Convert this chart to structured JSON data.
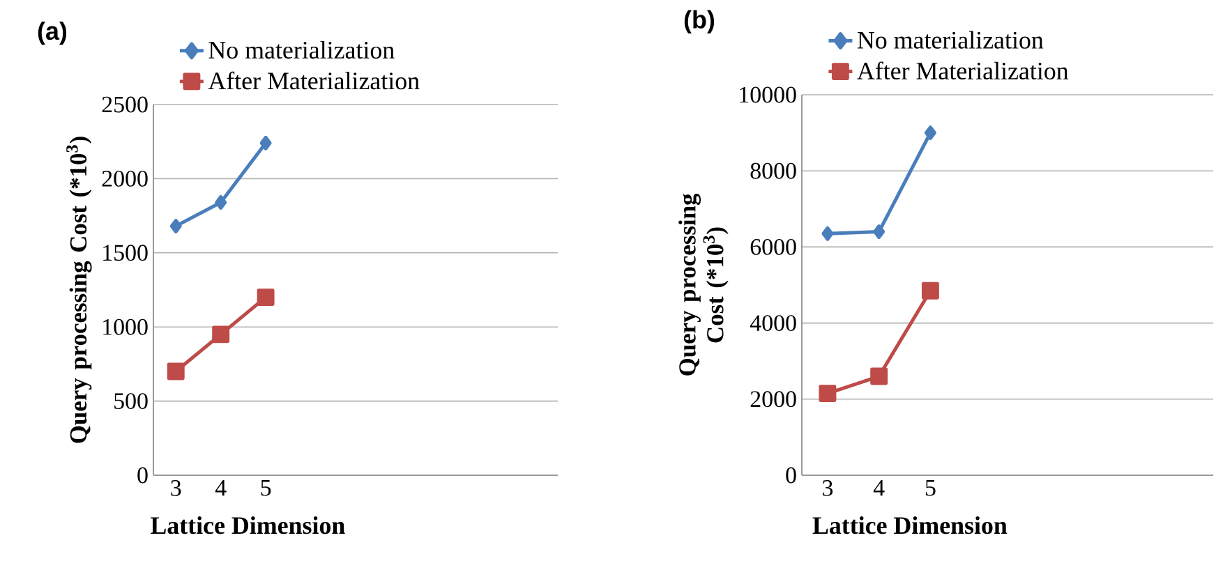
{
  "chart_data": [
    {
      "type": "line",
      "title": "(a)",
      "xlabel": "Lattice Dimension",
      "ylabel": "Query processing Cost (*10$^{3}$)",
      "categories": [
        "3",
        "4",
        "5",
        null,
        null,
        null,
        null,
        null,
        null
      ],
      "ylim": [
        0,
        2500
      ],
      "yticks": [
        0,
        500,
        1000,
        1500,
        2000,
        2500
      ],
      "grid": "y",
      "legend": "top",
      "series": [
        {
          "name": "No materialization",
          "color": "#4a7ebb",
          "marker": "diamond",
          "values": [
            1680,
            1840,
            2240,
            null,
            null,
            null,
            null,
            null,
            null
          ]
        },
        {
          "name": "After Materialization",
          "color": "#be4b48",
          "marker": "square",
          "values": [
            700,
            950,
            1200,
            null,
            null,
            null,
            null,
            null,
            null
          ]
        }
      ]
    },
    {
      "type": "line",
      "title": "(b)",
      "xlabel": "Lattice Dimension",
      "ylabel": "Query processing Cost (*10$^{3}$)",
      "categories": [
        "3",
        "4",
        "5",
        null,
        null,
        null,
        null,
        null
      ],
      "ylim": [
        0,
        10000
      ],
      "yticks": [
        0,
        2000,
        4000,
        6000,
        8000,
        10000
      ],
      "grid": "y",
      "legend": "top",
      "series": [
        {
          "name": "No materialization",
          "color": "#4a7ebb",
          "marker": "diamond",
          "values": [
            6350,
            6400,
            9000,
            null,
            null,
            null,
            null,
            null
          ]
        },
        {
          "name": "After Materialization",
          "color": "#be4b48",
          "marker": "square",
          "values": [
            2150,
            2600,
            4850,
            null,
            null,
            null,
            null,
            null
          ]
        }
      ]
    }
  ]
}
